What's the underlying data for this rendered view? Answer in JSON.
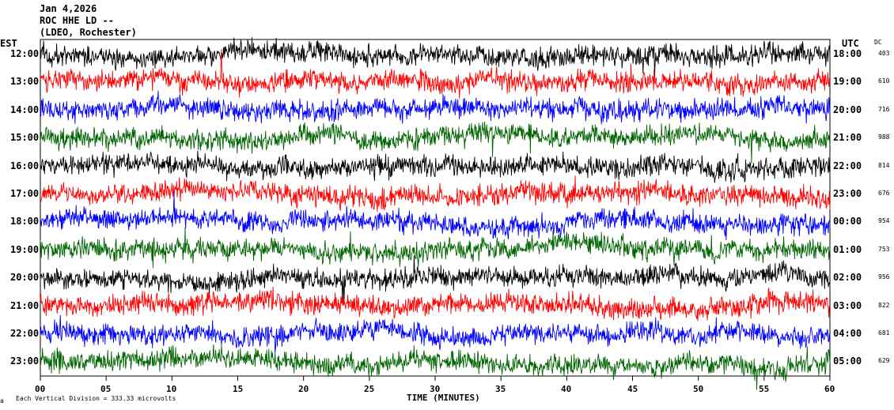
{
  "header": {
    "date": "Jan 4,2026",
    "station": "ROC HHE LD --",
    "network": "(LDEO, Rochester)"
  },
  "labels": {
    "left_tz": "EST",
    "right_tz": "UTC",
    "dc": "DC",
    "xlabel": "TIME (MINUTES)",
    "footnote": "Each Vertical Division = 333.33 microvolts"
  },
  "chart_data": {
    "type": "line",
    "title": "Jan 4,2026 ROC HHE LD -- (LDEO, Rochester)",
    "xlabel": "TIME (MINUTES)",
    "xlim": [
      0,
      60
    ],
    "x_ticks": [
      "00",
      "05",
      "10",
      "15",
      "20",
      "25",
      "30",
      "35",
      "40",
      "45",
      "50",
      "55",
      "60"
    ],
    "rows": [
      {
        "est": "12:00",
        "utc": "18:00",
        "dc": "403",
        "color": "#000000"
      },
      {
        "est": "13:00",
        "utc": "19:00",
        "dc": "610",
        "color": "#ff0000"
      },
      {
        "est": "14:00",
        "utc": "20:00",
        "dc": "716",
        "color": "#0000ff"
      },
      {
        "est": "15:00",
        "utc": "21:00",
        "dc": "988",
        "color": "#006400"
      },
      {
        "est": "16:00",
        "utc": "22:00",
        "dc": "814",
        "color": "#000000"
      },
      {
        "est": "17:00",
        "utc": "23:00",
        "dc": "676",
        "color": "#ff0000"
      },
      {
        "est": "18:00",
        "utc": "00:00",
        "dc": "954",
        "color": "#0000ff"
      },
      {
        "est": "19:00",
        "utc": "01:00",
        "dc": "753",
        "color": "#006400"
      },
      {
        "est": "20:00",
        "utc": "02:00",
        "dc": "956",
        "color": "#000000"
      },
      {
        "est": "21:00",
        "utc": "03:00",
        "dc": "822",
        "color": "#ff0000"
      },
      {
        "est": "22:00",
        "utc": "04:00",
        "dc": "681",
        "color": "#0000ff"
      },
      {
        "est": "23:00",
        "utc": "05:00",
        "dc": "629",
        "color": "#006400"
      }
    ]
  }
}
